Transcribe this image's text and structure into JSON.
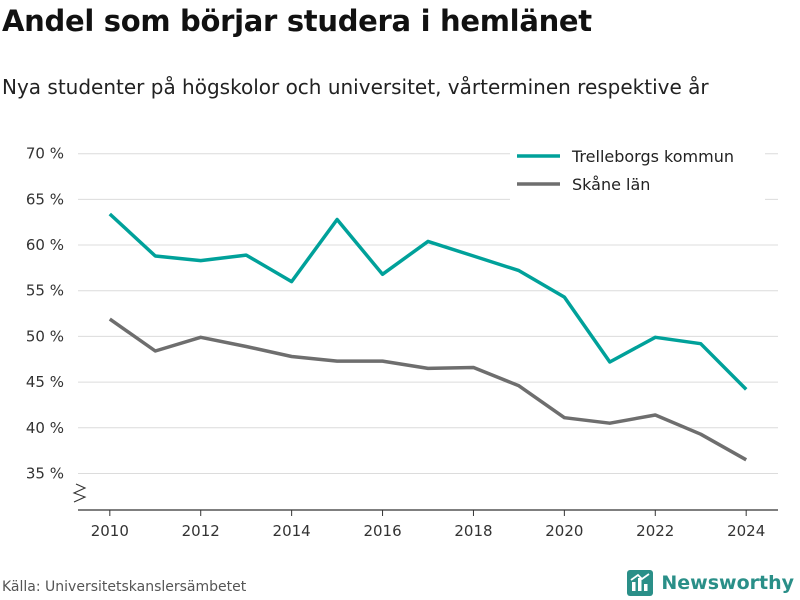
{
  "header": {
    "title": "Andel som börjar studera i hemlänet",
    "subtitle": "Nya studenter på högskolor och universitet, vårterminen respektive år"
  },
  "footer": {
    "source": "Källa: Universitetskanslersämbetet",
    "brand": "Newsworthy",
    "brand_color": "#2a8f88"
  },
  "chart_data": {
    "type": "line",
    "x": [
      2010,
      2011,
      2012,
      2013,
      2014,
      2015,
      2016,
      2017,
      2018,
      2019,
      2020,
      2021,
      2022,
      2023,
      2024
    ],
    "x_ticks": [
      2010,
      2012,
      2014,
      2016,
      2018,
      2020,
      2022,
      2024
    ],
    "x_tick_labels": [
      "2010",
      "2012",
      "2014",
      "2016",
      "2018",
      "2020",
      "2022",
      "2024"
    ],
    "y_ticks": [
      35,
      40,
      45,
      50,
      55,
      60,
      65,
      70
    ],
    "y_tick_labels": [
      "35 %",
      "40 %",
      "45 %",
      "50 %",
      "55 %",
      "60 %",
      "65 %",
      "70 %"
    ],
    "xlim": [
      2009.3,
      2024.7
    ],
    "ylim": [
      31,
      71.5
    ],
    "axis_break": true,
    "grid": true,
    "legend_position": "top-right",
    "series": [
      {
        "name": "Trelleborgs kommun",
        "color": "#00a19a",
        "values": [
          63.4,
          58.8,
          58.3,
          58.9,
          56.0,
          62.8,
          56.8,
          60.4,
          58.8,
          57.2,
          54.3,
          47.2,
          49.9,
          49.2,
          44.2
        ]
      },
      {
        "name": "Skåne län",
        "color": "#6e6e6e",
        "values": [
          51.9,
          48.4,
          49.9,
          48.9,
          47.8,
          47.3,
          47.3,
          46.5,
          46.6,
          44.6,
          41.1,
          40.5,
          41.4,
          39.3,
          36.5
        ]
      }
    ]
  }
}
